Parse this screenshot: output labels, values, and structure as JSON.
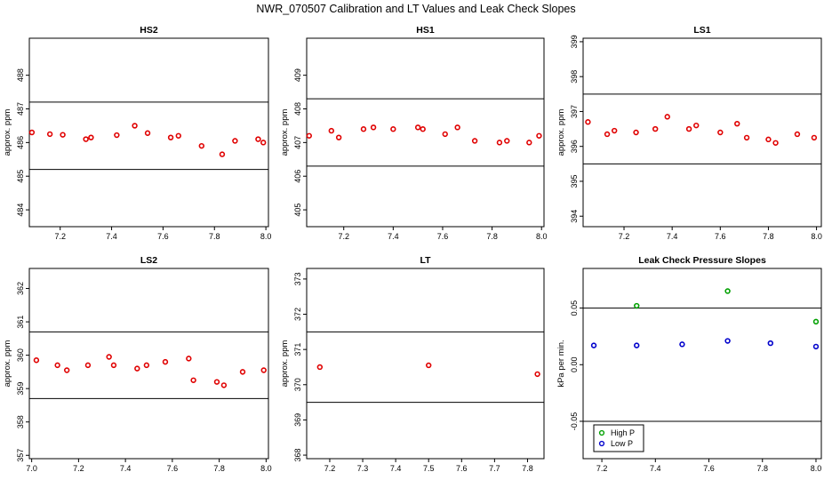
{
  "figure_title": "NWR_070507  Calibration and LT Values and Leak Check Slopes",
  "chart_data": [
    {
      "type": "scatter",
      "title": "HS2",
      "ylabel": "approx. ppm",
      "xlim": [
        7.08,
        8.01
      ],
      "ylim": [
        483.5,
        489.1
      ],
      "xticks": [
        7.2,
        7.4,
        7.6,
        7.8,
        8.0
      ],
      "xtick_labels": [
        "7.2",
        "7.4",
        "7.6",
        "7.8",
        "8.0"
      ],
      "yticks": [
        484,
        485,
        486,
        487,
        488
      ],
      "ytick_labels": [
        "484",
        "485",
        "486",
        "487",
        "488"
      ],
      "hlines": [
        485.2,
        487.2
      ],
      "series": [
        {
          "color": "#e00000",
          "x": [
            7.09,
            7.16,
            7.21,
            7.3,
            7.32,
            7.42,
            7.49,
            7.54,
            7.63,
            7.66,
            7.75,
            7.83,
            7.88,
            7.97,
            7.99
          ],
          "y": [
            486.3,
            486.25,
            486.23,
            486.1,
            486.15,
            486.22,
            486.5,
            486.28,
            486.15,
            486.2,
            485.9,
            485.65,
            486.05,
            486.1,
            486.0
          ]
        }
      ]
    },
    {
      "type": "scatter",
      "title": "HS1",
      "ylabel": "approx. ppm",
      "xlim": [
        7.05,
        8.01
      ],
      "ylim": [
        404.5,
        410.1
      ],
      "xticks": [
        7.2,
        7.4,
        7.6,
        7.8,
        8.0
      ],
      "xtick_labels": [
        "7.2",
        "7.4",
        "7.6",
        "7.8",
        "8.0"
      ],
      "yticks": [
        405,
        406,
        407,
        408,
        409
      ],
      "ytick_labels": [
        "405",
        "406",
        "407",
        "408",
        "409"
      ],
      "hlines": [
        406.3,
        408.3
      ],
      "series": [
        {
          "color": "#e00000",
          "x": [
            7.06,
            7.15,
            7.18,
            7.28,
            7.32,
            7.4,
            7.5,
            7.52,
            7.61,
            7.66,
            7.73,
            7.83,
            7.86,
            7.95,
            7.99
          ],
          "y": [
            407.2,
            407.35,
            407.15,
            407.4,
            407.45,
            407.4,
            407.45,
            407.4,
            407.25,
            407.45,
            407.05,
            407.0,
            407.05,
            407.0,
            407.2
          ]
        }
      ]
    },
    {
      "type": "scatter",
      "title": "LS1",
      "ylabel": "approx. ppm",
      "xlim": [
        7.03,
        8.02
      ],
      "ylim": [
        393.7,
        399.1
      ],
      "xticks": [
        7.2,
        7.4,
        7.6,
        7.8,
        8.0
      ],
      "xtick_labels": [
        "7.2",
        "7.4",
        "7.6",
        "7.8",
        "8.0"
      ],
      "yticks": [
        394,
        395,
        396,
        397,
        398,
        399
      ],
      "ytick_labels": [
        "394",
        "395",
        "396",
        "397",
        "398",
        "399"
      ],
      "hlines": [
        395.5,
        397.5
      ],
      "series": [
        {
          "color": "#e00000",
          "x": [
            7.05,
            7.13,
            7.16,
            7.25,
            7.33,
            7.38,
            7.47,
            7.5,
            7.6,
            7.67,
            7.71,
            7.8,
            7.83,
            7.92,
            7.99
          ],
          "y": [
            396.7,
            396.35,
            396.45,
            396.4,
            396.5,
            396.85,
            396.5,
            396.6,
            396.4,
            396.65,
            396.25,
            396.2,
            396.1,
            396.35,
            396.25
          ]
        }
      ]
    },
    {
      "type": "scatter",
      "title": "LS2",
      "ylabel": "approx. ppm",
      "xlim": [
        6.99,
        8.01
      ],
      "ylim": [
        356.9,
        362.6
      ],
      "xticks": [
        7.0,
        7.2,
        7.4,
        7.6,
        7.8,
        8.0
      ],
      "xtick_labels": [
        "7.0",
        "7.2",
        "7.4",
        "7.6",
        "7.8",
        "8.0"
      ],
      "yticks": [
        357,
        358,
        359,
        360,
        361,
        362
      ],
      "ytick_labels": [
        "357",
        "358",
        "359",
        "360",
        "361",
        "362"
      ],
      "hlines": [
        358.7,
        360.7
      ],
      "series": [
        {
          "color": "#e00000",
          "x": [
            7.02,
            7.11,
            7.15,
            7.24,
            7.33,
            7.35,
            7.45,
            7.49,
            7.57,
            7.67,
            7.69,
            7.79,
            7.82,
            7.9,
            7.99
          ],
          "y": [
            359.85,
            359.7,
            359.55,
            359.7,
            359.95,
            359.7,
            359.6,
            359.7,
            359.8,
            359.9,
            359.25,
            359.2,
            359.1,
            359.5,
            359.55
          ]
        }
      ]
    },
    {
      "type": "scatter",
      "title": "LT",
      "ylabel": "approx. ppm",
      "xlim": [
        7.13,
        7.85
      ],
      "ylim": [
        367.9,
        373.3
      ],
      "xticks": [
        7.2,
        7.3,
        7.4,
        7.5,
        7.6,
        7.7,
        7.8
      ],
      "xtick_labels": [
        "7.2",
        "7.3",
        "7.4",
        "7.5",
        "7.6",
        "7.7",
        "7.8"
      ],
      "yticks": [
        368,
        369,
        370,
        371,
        372,
        373
      ],
      "ytick_labels": [
        "368",
        "369",
        "370",
        "371",
        "372",
        "373"
      ],
      "hlines": [
        369.5,
        371.5
      ],
      "series": [
        {
          "color": "#e00000",
          "x": [
            7.17,
            7.5,
            7.83
          ],
          "y": [
            370.5,
            370.55,
            370.3
          ]
        }
      ]
    },
    {
      "type": "scatter",
      "title": "Leak Check Pressure Slopes",
      "ylabel": "kPa per min.",
      "xlim": [
        7.13,
        8.02
      ],
      "ylim": [
        -0.083,
        0.085
      ],
      "xticks": [
        7.2,
        7.4,
        7.6,
        7.8,
        8.0
      ],
      "xtick_labels": [
        "7.2",
        "7.4",
        "7.6",
        "7.8",
        "8.0"
      ],
      "yticks": [
        -0.05,
        0.0,
        0.05
      ],
      "ytick_labels": [
        "-0.05",
        "0.00",
        "0.05"
      ],
      "hlines": [
        -0.05,
        0.05
      ],
      "legend": {
        "placement": "bottom-left",
        "entries": [
          {
            "label": "High P",
            "color": "#00a000"
          },
          {
            "label": "Low P",
            "color": "#0000cc"
          }
        ]
      },
      "series": [
        {
          "name": "High P",
          "color": "#00a000",
          "x": [
            7.33,
            7.67,
            8.0
          ],
          "y": [
            0.052,
            0.065,
            0.038
          ]
        },
        {
          "name": "Low P",
          "color": "#0000cc",
          "x": [
            7.17,
            7.33,
            7.5,
            7.67,
            7.83,
            8.0
          ],
          "y": [
            0.017,
            0.017,
            0.018,
            0.021,
            0.019,
            0.016
          ]
        }
      ]
    }
  ]
}
